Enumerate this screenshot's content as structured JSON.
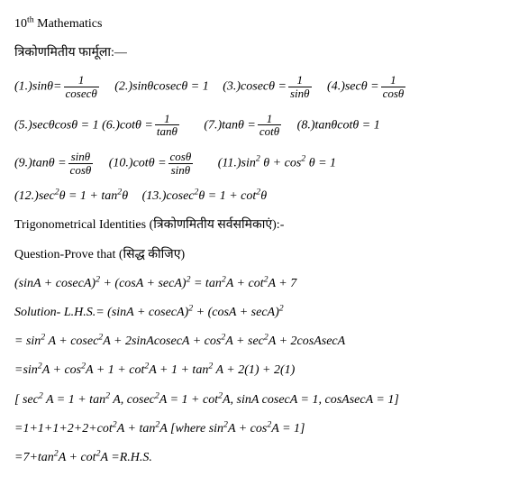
{
  "header": "10",
  "header_sup": "th",
  "header_tail": " Mathematics",
  "hindi1": "त्रिकोणमितीय फार्मूला:—",
  "f1_pre": "(1.)sinθ=",
  "f1_num": "1",
  "f1_den": "cosecθ",
  "f2": "(2.)sinθcosecθ = 1",
  "f3_pre": "(3.)cosecθ =",
  "f3_num": "1",
  "f3_den": "sinθ",
  "f4_pre": "(4.)secθ =",
  "f4_num": "1",
  "f4_den": "cosθ",
  "f5": "(5.)secθcosθ = 1",
  "f6_pre": "(6.)cotθ =",
  "f6_num": "1",
  "f6_den": "tanθ",
  "f7_pre": "(7.)tanθ =",
  "f7_num": "1",
  "f7_den": "cotθ",
  "f8": "(8.)tanθcotθ = 1",
  "f9_pre": "(9.)tanθ =",
  "f9_num": "sinθ",
  "f9_den": "cosθ",
  "f10_pre": "(10.)cotθ =",
  "f10_num": "cosθ",
  "f10_den": "sinθ",
  "f11_a": "(11.)sin",
  "f11_b": " θ + cos",
  "f11_c": " θ = 1",
  "f12_a": "(12.)sec",
  "f12_b": "θ = 1 + tan",
  "f12_c": "θ",
  "f13_a": "(13.)cosec",
  "f13_b": "θ = 1 + cot",
  "f13_c": "θ",
  "ident": "Trigonometrical Identities (त्रिकोणमितीय  सर्वसमिकाएं):-",
  "qp": "Question-Prove that (सिद्ध कीजिए)",
  "eq_a": " (sinA + cosecA)",
  "eq_b": " + (cosA + secA)",
  "eq_c": " = tan",
  "eq_d": "A + cot",
  "eq_e": "A + 7",
  "sol_a": "Solution- L.H.S.= (sinA + cosecA)",
  "sol_b": " + (cosA + secA)",
  "s1_a": "= sin",
  "s1_b": " A + cosec",
  "s1_c": "A + 2sinAcosecA + cos",
  "s1_d": "A + sec",
  "s1_e": "A + 2cosAsecA",
  "s2_a": "=sin",
  "s2_b": "A + cos",
  "s2_c": "A + 1 + cot",
  "s2_d": "A + 1 + tan",
  "s2_e": " A + 2(1) + 2(1)",
  "s3_a": "[ sec",
  "s3_b": " A = 1 + tan",
  "s3_c": " A, cosec",
  "s3_d": "A = 1 + cot",
  "s3_e": "A, sinA cosecA = 1, cosAsecA = 1]",
  "s4_a": "=1+1+1+2+2+cot",
  "s4_b": "A + tan",
  "s4_c": "A   [where sin",
  "s4_d": "A + cos",
  "s4_e": "A = 1]",
  "s5_a": "=7+tan",
  "s5_b": "A + cot",
  "s5_c": "A   =R.H.S.",
  "sup2": "2"
}
